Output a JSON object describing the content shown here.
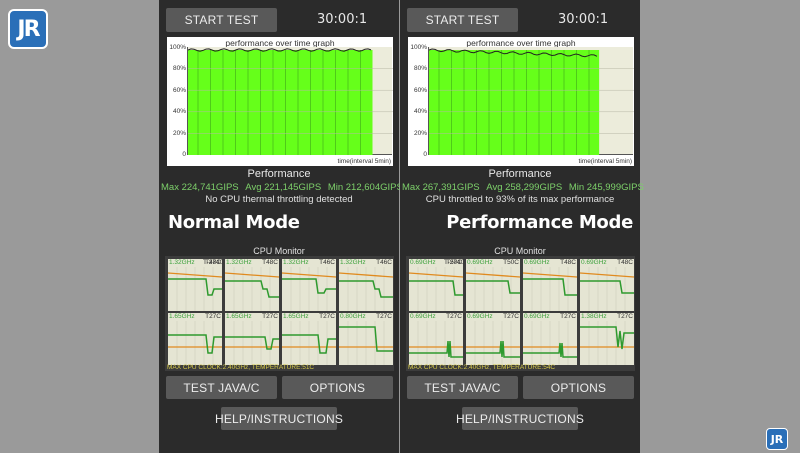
{
  "watermark": {
    "logo_text": "JR",
    "logo_small_text": "JR"
  },
  "panels": [
    {
      "start_label": "START TEST",
      "timer": "30:00:1",
      "graph_title": "performance over time graph",
      "y_ticks": [
        "100%",
        "80%",
        "60%",
        "40%",
        "20%",
        "0"
      ],
      "x_label": "time(interval 5min)",
      "fill_fraction": 0.9,
      "perf_title": "Performance",
      "max": "Max 224,741GIPS",
      "avg": "Avg 221,145GIPS",
      "min": "Min 212,604GIPS",
      "note": "No CPU thermal throttling detected",
      "mode": "Normal Mode",
      "cpu_title": "CPU Monitor",
      "cores": [
        {
          "label": "1.32GHz",
          "temp": "T48C",
          "extra": "T-274000C"
        },
        {
          "label": "1.32GHz",
          "temp": "T48C",
          "extra": ""
        },
        {
          "label": "1.32GHz",
          "temp": "T46C",
          "extra": ""
        },
        {
          "label": "1.32GHz",
          "temp": "T46C",
          "extra": ""
        },
        {
          "label": "1.65GHz",
          "temp": "T27C",
          "extra": ""
        },
        {
          "label": "1.65GHz",
          "temp": "T27C",
          "extra": ""
        },
        {
          "label": "1.65GHz",
          "temp": "T27C",
          "extra": ""
        },
        {
          "label": "0.80GHz",
          "temp": "T27C",
          "extra": ""
        }
      ],
      "cpu_footer": "MAX CPU CLOCK:2.40GHz, TEMPERATURE:51C",
      "java_label": "TEST JAVA/C",
      "options_label": "OPTIONS",
      "help_label": "HELP/INSTRUCTIONS"
    },
    {
      "start_label": "START TEST",
      "timer": "30:00:1",
      "graph_title": "performance over time graph",
      "y_ticks": [
        "100%",
        "80%",
        "60%",
        "40%",
        "20%",
        "0"
      ],
      "x_label": "time(interval 5min)",
      "fill_fraction": 0.83,
      "perf_title": "Performance",
      "max": "Max 267,391GIPS",
      "avg": "Avg 258,299GIPS",
      "min": "Min 245,999GIPS",
      "note": "CPU throttled to 93% of its max performance",
      "mode": "Performance Mode",
      "cpu_title": "CPU Monitor",
      "cores": [
        {
          "label": "0.69GHz",
          "temp": "T50C",
          "extra": "T-274000C"
        },
        {
          "label": "0.69GHz",
          "temp": "T50C",
          "extra": ""
        },
        {
          "label": "0.69GHz",
          "temp": "T48C",
          "extra": ""
        },
        {
          "label": "0.69GHz",
          "temp": "T48C",
          "extra": ""
        },
        {
          "label": "0.69GHz",
          "temp": "T27C",
          "extra": ""
        },
        {
          "label": "0.69GHz",
          "temp": "T27C",
          "extra": ""
        },
        {
          "label": "0.69GHz",
          "temp": "T27C",
          "extra": ""
        },
        {
          "label": "1.38GHz",
          "temp": "T27C",
          "extra": ""
        }
      ],
      "cpu_footer": "MAX CPU CLOCK:2.40GHz, TEMPERATURE:54C",
      "java_label": "TEST JAVA/C",
      "options_label": "OPTIONS",
      "help_label": "HELP/INSTRUCTIONS"
    }
  ],
  "colors": {
    "green_fill": "#66ff1a",
    "stat_green": "#7dd06a",
    "core_line": "#2e9a2e",
    "temp_line": "#e08a1e"
  }
}
